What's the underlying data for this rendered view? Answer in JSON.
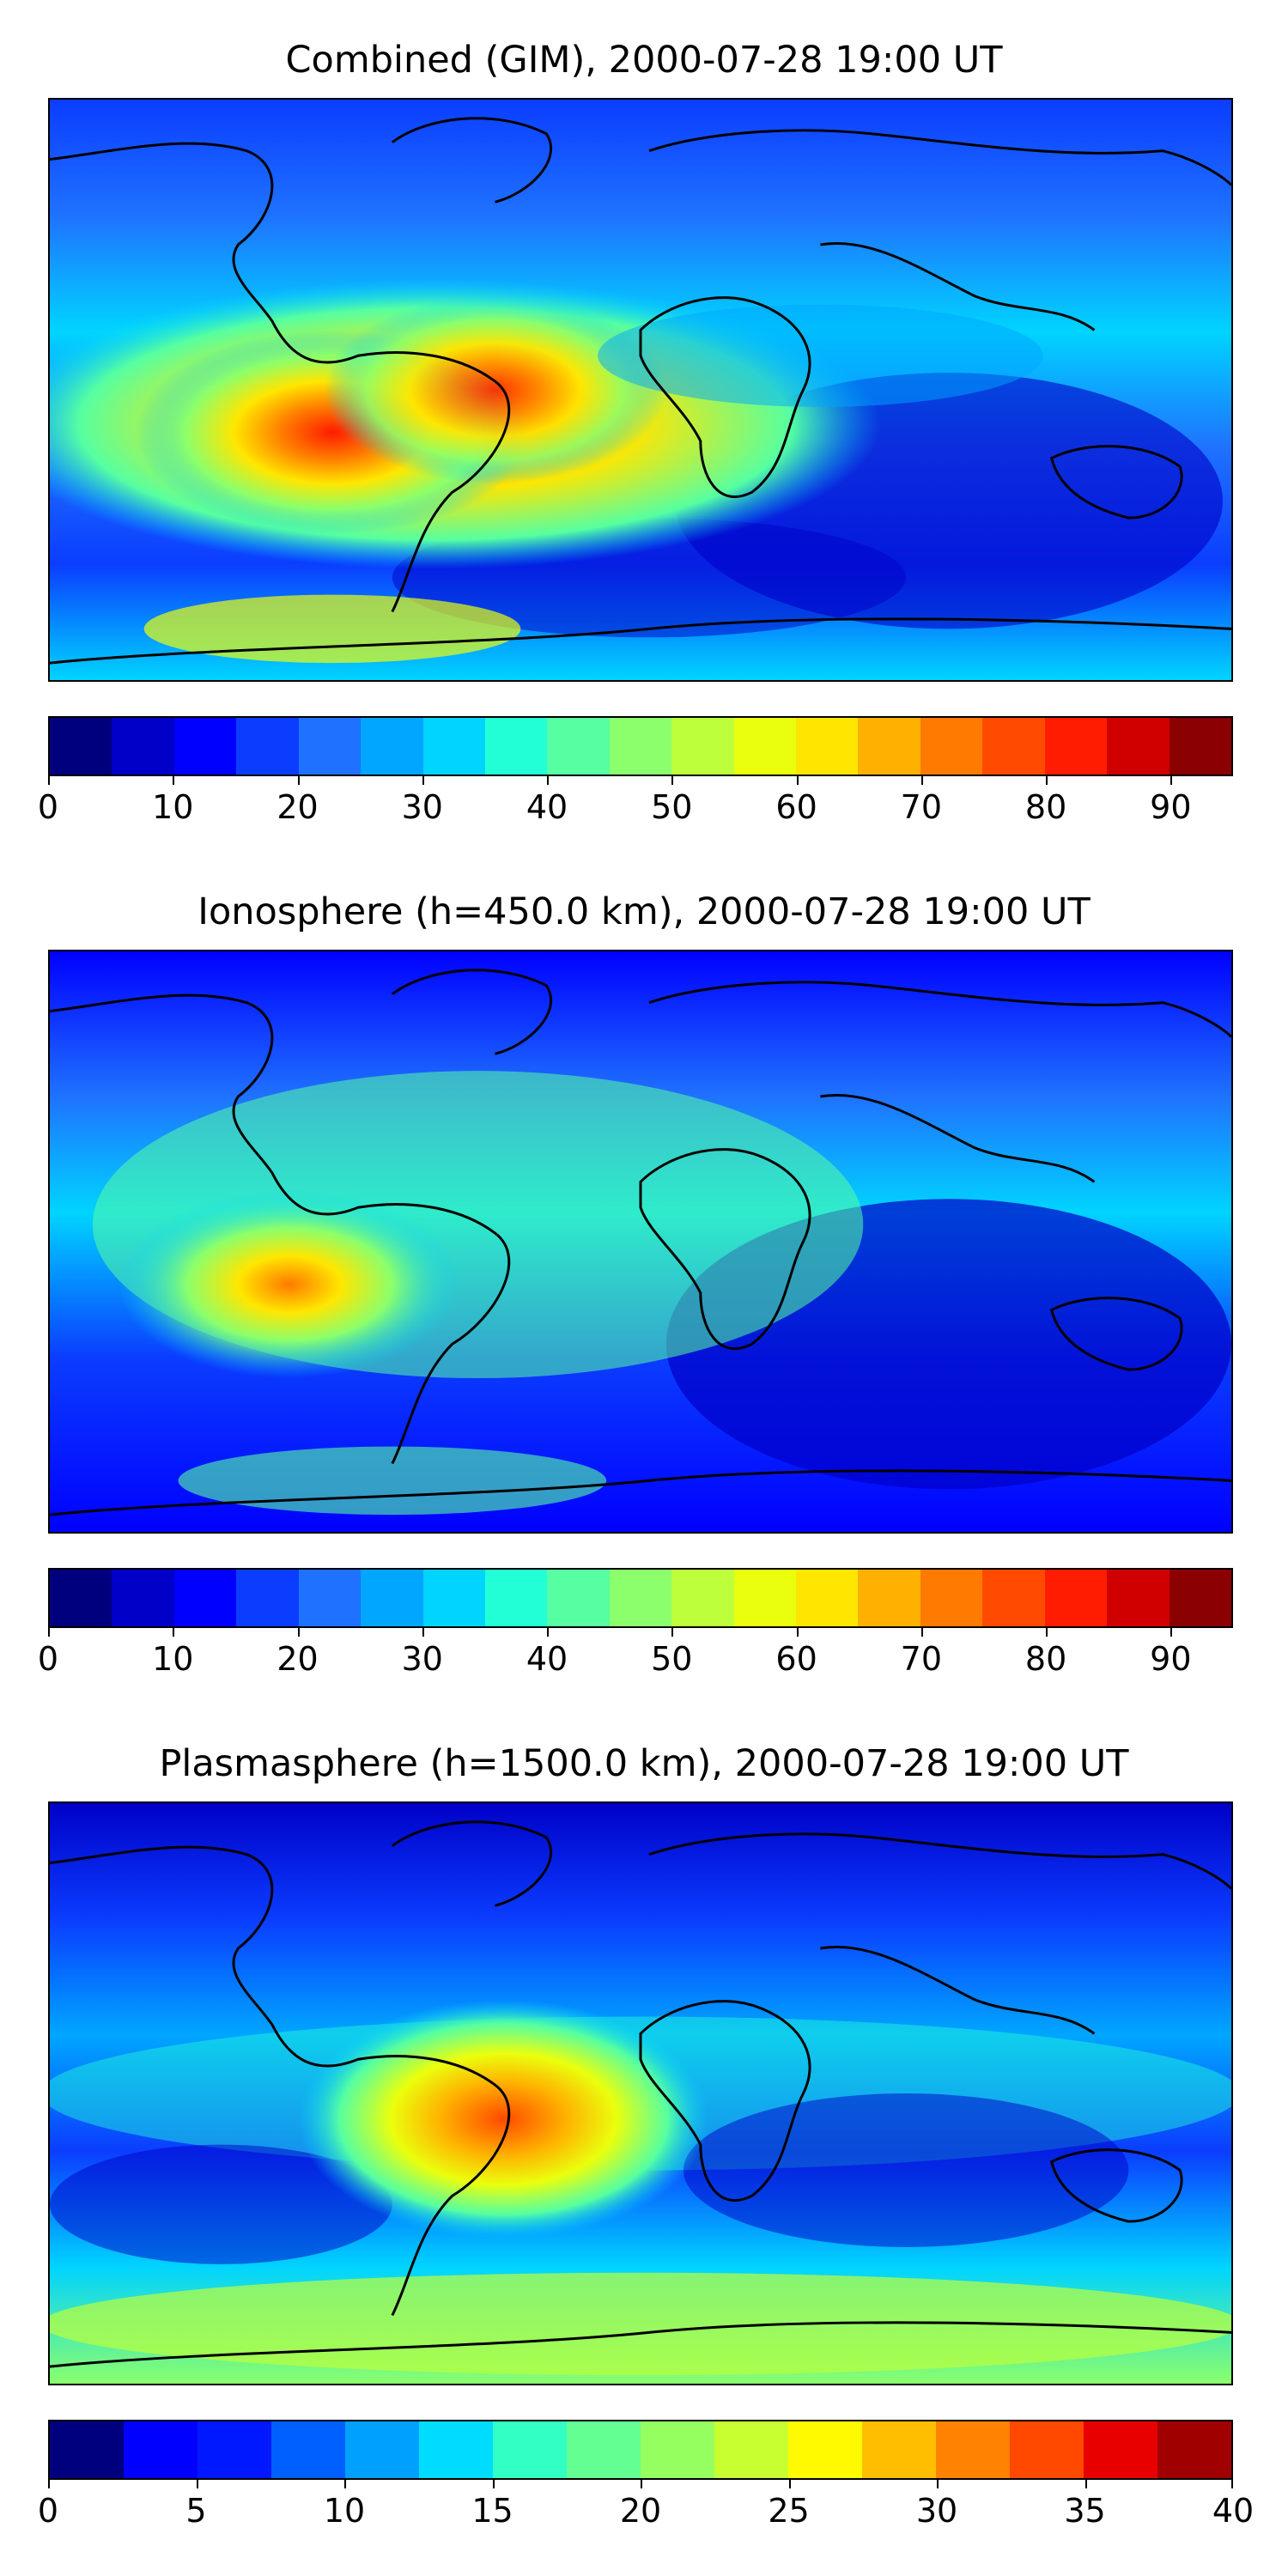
{
  "panels": [
    {
      "title": "Combined (GIM), 2000-07-28 19:00 UT",
      "colorbar": {
        "min": 0,
        "max": 95,
        "step": 5,
        "ticks": [
          "0",
          "10",
          "20",
          "30",
          "40",
          "50",
          "60",
          "70",
          "80",
          "90"
        ],
        "tick_values": [
          0,
          10,
          20,
          30,
          40,
          50,
          60,
          70,
          80,
          90
        ]
      }
    },
    {
      "title": "Ionosphere  (h=450.0 km), 2000-07-28 19:00 UT",
      "colorbar": {
        "min": 0,
        "max": 95,
        "step": 5,
        "ticks": [
          "0",
          "10",
          "20",
          "30",
          "40",
          "50",
          "60",
          "70",
          "80",
          "90"
        ],
        "tick_values": [
          0,
          10,
          20,
          30,
          40,
          50,
          60,
          70,
          80,
          90
        ]
      }
    },
    {
      "title": "Plasmasphere (h=1500.0 km), 2000-07-28 19:00 UT",
      "colorbar": {
        "min": 0,
        "max": 40,
        "step": 2.5,
        "ticks": [
          "0",
          "5",
          "10",
          "15",
          "20",
          "25",
          "30",
          "35",
          "40"
        ],
        "tick_values": [
          0,
          5,
          10,
          15,
          20,
          25,
          30,
          35,
          40
        ]
      }
    }
  ],
  "colormap": "jet",
  "colors": {
    "jet_19": [
      "#00007f",
      "#0000c8",
      "#0000ff",
      "#0b3dff",
      "#1f72ff",
      "#00a6ff",
      "#00d4ff",
      "#22ffd7",
      "#56ffa1",
      "#8bff6c",
      "#bcff3a",
      "#eaff0d",
      "#ffe600",
      "#ffb000",
      "#ff7a00",
      "#ff4a00",
      "#ff1c00",
      "#d00000",
      "#8b0000"
    ],
    "jet_16": [
      "#00007f",
      "#0000ff",
      "#0018ff",
      "#0060ff",
      "#00a0ff",
      "#00dcff",
      "#32ffc4",
      "#64ff92",
      "#96ff60",
      "#c8ff30",
      "#fffa00",
      "#ffbe00",
      "#ff8200",
      "#ff4800",
      "#e80000",
      "#a00000"
    ]
  }
}
